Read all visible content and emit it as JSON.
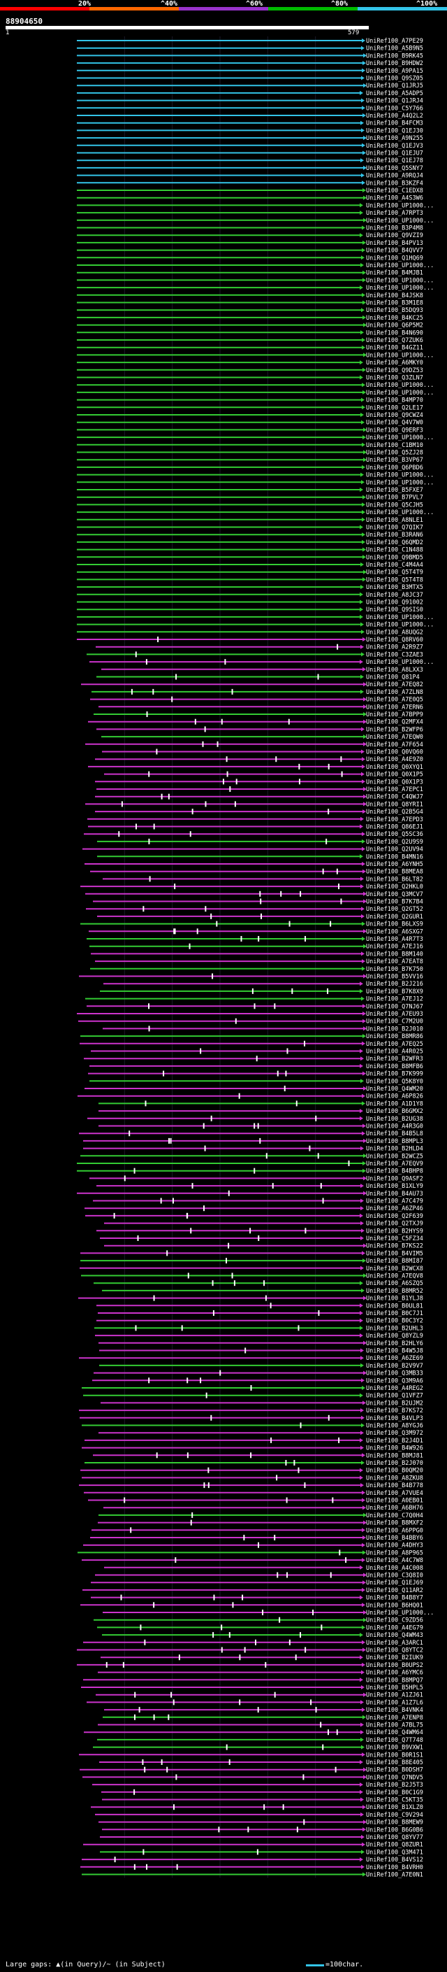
{
  "legend": {
    "items": [
      {
        "label": "20%",
        "color": "#ff0000"
      },
      {
        "label": "^40%",
        "color": "#ff6600"
      },
      {
        "label": "^60%",
        "color": "#9933cc"
      },
      {
        "label": "^80%",
        "color": "#00bb00"
      },
      {
        "label": "^100%",
        "color": "#33c4e8"
      }
    ]
  },
  "query": {
    "id": "88904650",
    "start": "1",
    "end": "579"
  },
  "footer": {
    "large_gaps": "Large gaps: ▲(in Query)/~ (in Subject)",
    "scale": "=100char."
  },
  "colors": {
    "cyan": "#33c4e8",
    "green": "#33cc33",
    "magenta": "#cc33cc"
  },
  "hits": [
    "UniRef100_A7PE29",
    "UniRef100_A5B9N5",
    "UniRef100_B9RK45",
    "UniRef100_B9HDW2",
    "UniRef100_A9PA15",
    "UniRef100_Q9SZ05",
    "UniRef100_Q1JRJ5",
    "UniRef100_A5ADP5",
    "UniRef100_Q1JRJ4",
    "UniRef100_C5Y766",
    "UniRef100_A4Q2L2",
    "UniRef100_B4FCM3",
    "UniRef100_Q1EJ30",
    "UniRef100_A9N255",
    "UniRef100_Q1EJV3",
    "UniRef100_Q1EJU7",
    "UniRef100_Q1EJ78",
    "UniRef100_Q5SNY7",
    "UniRef100_A9RQJ4",
    "UniRef100_B3KZF4",
    "UniRef100_C1EDX8",
    "UniRef100_A4S3W6",
    "UniRef100_UP1000...",
    "UniRef100_A7RPT3",
    "UniRef100_UP1000...",
    "UniRef100_B3P4M8",
    "UniRef100_Q9VZI9",
    "UniRef100_B4PV13",
    "UniRef100_B4QVV7",
    "UniRef100_Q1HQ69",
    "UniRef100_UP1000...",
    "UniRef100_B4MJB1",
    "UniRef100_UP1000...",
    "UniRef100_UP1000...",
    "UniRef100_B4JSK8",
    "UniRef100_B3M1E8",
    "UniRef100_B5DQ93",
    "UniRef100_B4KC25",
    "UniRef100_Q6P5M2",
    "UniRef100_B4N690",
    "UniRef100_Q7ZUK6",
    "UniRef100_B4GZ11",
    "UniRef100_UP1000...",
    "UniRef100_A6MKY0",
    "UniRef100_Q9DZ53",
    "UniRef100_Q3ZLN7",
    "UniRef100_UP1000...",
    "UniRef100_UP1000...",
    "UniRef100_B4MP70",
    "UniRef100_Q2LE17",
    "UniRef100_Q9CWZ4",
    "UniRef100_Q4V7W0",
    "UniRef100_Q9ERF3",
    "UniRef100_UP1000...",
    "UniRef100_C1BM10",
    "UniRef100_Q5ZJ28",
    "UniRef100_B3VP67",
    "UniRef100_Q6PBD6",
    "UniRef100_UP1000...",
    "UniRef100_UP1000...",
    "UniRef100_B5FXE7",
    "UniRef100_B7PVL7",
    "UniRef100_Q5CJH5",
    "UniRef100_UP1000...",
    "UniRef100_A8NLE1",
    "UniRef100_Q7QIK7",
    "UniRef100_B3RAN6",
    "UniRef100_Q6QMD2",
    "UniRef100_C1N488",
    "UniRef100_Q9BMD5",
    "UniRef100_C4M4A4",
    "UniRef100_Q5T4T9",
    "UniRef100_Q5T4T8",
    "UniRef100_B3MTX5",
    "UniRef100_A8JC37",
    "UniRef100_Q91002",
    "UniRef100_Q9SIS0",
    "UniRef100_UP1000...",
    "UniRef100_UP1000...",
    "UniRef100_A8UQG2",
    "UniRef100_Q8RV60",
    "UniRef100_A2R9Z7",
    "UniRef100_C3ZAE3",
    "UniRef100_UP1000...",
    "UniRef100_A8LXX3",
    "UniRef100_Q81P4",
    "UniRef100_A7EQ82",
    "UniRef100_A7ZLN8",
    "UniRef100_A7E0Q5",
    "UniRef100_A7ERN6",
    "UniRef100_A7BPP9",
    "UniRef100_Q2MFX4",
    "UniRef100_B2WFP6",
    "UniRef100_A7EQW0",
    "UniRef100_A7F654",
    "UniRef100_Q0VQ60",
    "UniRef100_A4E9Z0",
    "UniRef100_Q0XYQ1",
    "UniRef100_Q0X1P5",
    "UniRef100_Q0X1P3",
    "UniRef100_A7EPC1",
    "UniRef100_C4QWJ7",
    "UniRef100_Q8YRI1",
    "UniRef100_Q2B5G4",
    "UniRef100_A7EPD3",
    "UniRef100_Q86EJ1",
    "UniRef100_Q5SC36",
    "UniRef100_Q2U9S9",
    "UniRef100_Q2UV94",
    "UniRef100_B4MN16",
    "UniRef100_A6YNH5",
    "UniRef100_B8MEA8",
    "UniRef100_B6LT82",
    "UniRef100_Q2HKL0",
    "UniRef100_Q3MCV7",
    "UniRef100_B7K7B4",
    "UniRef100_Q2GT52",
    "UniRef100_Q2GUR1",
    "UniRef100_B6LXS9",
    "UniRef100_A6SXG7",
    "UniRef100_A4R7T3",
    "UniRef100_A7EJ16",
    "UniRef100_B8M140",
    "UniRef100_A7EAT8",
    "UniRef100_B7K750",
    "UniRef100_B5VV16",
    "UniRef100_B2J216",
    "UniRef100_B7K8X9",
    "UniRef100_A7EJ12",
    "UniRef100_Q7NJ67",
    "UniRef100_A7EU93",
    "UniRef100_C7M2U0",
    "UniRef100_B2J010",
    "UniRef100_B8MR86",
    "UniRef100_A7EQ25",
    "UniRef100_A4R025",
    "UniRef100_B2WFR3",
    "UniRef100_B8MFB6",
    "UniRef100_B7K999",
    "UniRef100_Q5K8Y0",
    "UniRef100_Q4WM20",
    "UniRef100_A6P826",
    "UniRef100_A1D1Y8",
    "UniRef100_B6GMX2",
    "UniRef100_B2UG38",
    "UniRef100_A4R3G0",
    "UniRef100_B4B5L8",
    "UniRef100_B8MPL3",
    "UniRef100_B2HLD4",
    "UniRef100_B2WCZ5",
    "UniRef100_A7EQV9",
    "UniRef100_B4BHP8",
    "UniRef100_Q9ASF2",
    "UniRef100_B1XLY9",
    "UniRef100_B4AU73",
    "UniRef100_A7C479",
    "UniRef100_A6ZP46",
    "UniRef100_Q2F639",
    "UniRef100_Q2TXJ9",
    "UniRef100_B2HYS9",
    "UniRef100_C5FZ34",
    "UniRef100_B7KS22",
    "UniRef100_B4VIM5",
    "UniRef100_B8MI87",
    "UniRef100_B2WCX8",
    "UniRef100_A7EQV8",
    "UniRef100_A6SZQ5",
    "UniRef100_B8MR52",
    "UniRef100_B1YLJ8",
    "UniRef100_B0UL81",
    "UniRef100_B0C7J1",
    "UniRef100_B0C3Y2",
    "UniRef100_B2UHL3",
    "UniRef100_Q8YZL9",
    "UniRef100_B2HLY6",
    "UniRef100_B4W5J8",
    "UniRef100_A6ZE69",
    "UniRef100_B2V9V7",
    "UniRef100_Q3MB33",
    "UniRef100_Q3M9A6",
    "UniRef100_A4REG2",
    "UniRef100_Q1VFZ7",
    "UniRef100_B2UJM2",
    "UniRef100_B7KS72",
    "UniRef100_B4VLP3",
    "UniRef100_A8YGJ6",
    "UniRef100_Q3M972",
    "UniRef100_B2J4D1",
    "UniRef100_B4W926",
    "UniRef100_B8MJ81",
    "UniRef100_B2J070",
    "UniRef100_B0QM20",
    "UniRef100_A8ZKU8",
    "UniRef100_B4B778",
    "UniRef100_A7VUE4",
    "UniRef100_A0EB01",
    "UniRef100_A6BH76",
    "UniRef100_C7Q0H4",
    "UniRef100_B8MXF2",
    "UniRef100_A6PPG0",
    "UniRef100_B4BBY6",
    "UniRef100_A4DHY3",
    "UniRef100_A8P965",
    "UniRef100_A4C7W8",
    "UniRef100_A4C008",
    "UniRef100_C3Q8I0",
    "UniRef100_Q1EJ69",
    "UniRef100_Q11AR2",
    "UniRef100_B4B8Y7",
    "UniRef100_B6HQ01",
    "UniRef100_UP1000...",
    "UniRef100_C9ZD56",
    "UniRef100_A4EG79",
    "UniRef100_Q4WM43",
    "UniRef100_A3ARC1",
    "UniRef100_Q8YTC2",
    "UniRef100_B2IUK9",
    "UniRef100_B0UPS2",
    "UniRef100_A6YMC6",
    "UniRef100_B8MPQ7",
    "UniRef100_B5HPL5",
    "UniRef100_A1ZJ61",
    "UniRef100_A1Z7L6",
    "UniRef100_B4VNK4",
    "UniRef100_A7ENP8",
    "UniRef100_A7BL75",
    "UniRef100_Q4WM64",
    "UniRef100_Q7T748",
    "UniRef100_B9VXW1",
    "UniRef100_B0R1S1",
    "UniRef100_B8E405",
    "UniRef100_B0DSH7",
    "UniRef100_Q7NDV5",
    "UniRef100_B2J5T3",
    "UniRef100_B0C1G9",
    "UniRef100_C5KT35",
    "UniRef100_B1XLZ0",
    "UniRef100_C9V294",
    "UniRef100_B8MEW9",
    "UniRef100_B6G0B6",
    "UniRef100_Q8YV77",
    "UniRef100_Q8ZUR1",
    "UniRef100_Q3M471",
    "UniRef100_B4VS12",
    "UniRef100_B4VRH0",
    "UniRef100_A7E0N1"
  ]
}
